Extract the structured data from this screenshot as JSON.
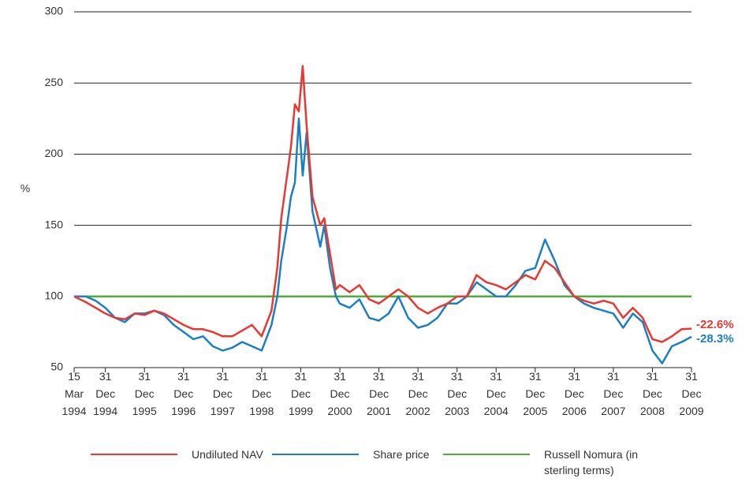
{
  "chart_data": {
    "type": "line",
    "y_label": "%",
    "x": [
      1994.2,
      1994.5,
      1994.75,
      1995,
      1995.25,
      1995.5,
      1995.75,
      1996,
      1996.25,
      1996.5,
      1996.75,
      1997,
      1997.25,
      1997.5,
      1997.75,
      1998,
      1998.25,
      1998.5,
      1998.75,
      1999,
      1999.25,
      1999.4,
      1999.5,
      1999.65,
      1999.75,
      1999.85,
      1999.95,
      2000.05,
      2000.15,
      2000.3,
      2000.5,
      2000.6,
      2000.75,
      2000.9,
      2001,
      2001.25,
      2001.5,
      2001.75,
      2002,
      2002.25,
      2002.5,
      2002.75,
      2003,
      2003.25,
      2003.5,
      2003.75,
      2004,
      2004.25,
      2004.5,
      2004.75,
      2005,
      2005.25,
      2005.5,
      2005.75,
      2006,
      2006.25,
      2006.5,
      2006.75,
      2007,
      2007.25,
      2007.5,
      2007.75,
      2008,
      2008.25,
      2008.5,
      2008.75,
      2009,
      2009.25,
      2009.5,
      2009.75,
      2010
    ],
    "series": [
      {
        "name": "Undiluted NAV",
        "color": "#e8382f",
        "values": [
          100,
          96,
          92,
          88,
          85,
          84,
          88,
          87,
          90,
          88,
          84,
          80,
          77,
          77,
          75,
          72,
          72,
          76,
          80,
          72,
          90,
          120,
          155,
          185,
          205,
          235,
          230,
          262,
          220,
          170,
          150,
          155,
          130,
          105,
          108,
          103,
          108,
          98,
          95,
          100,
          105,
          100,
          92,
          88,
          92,
          95,
          100,
          100,
          115,
          110,
          108,
          105,
          110,
          115,
          112,
          125,
          120,
          110,
          100,
          97,
          95,
          97,
          95,
          85,
          92,
          85,
          70,
          68,
          72,
          77,
          77.4
        ]
      },
      {
        "name": "Share price",
        "color": "#1b7fc1",
        "values": [
          100,
          100,
          97,
          92,
          85,
          82,
          88,
          88,
          90,
          87,
          80,
          75,
          70,
          72,
          65,
          62,
          64,
          68,
          65,
          62,
          80,
          100,
          125,
          150,
          170,
          180,
          225,
          185,
          215,
          160,
          135,
          150,
          120,
          100,
          95,
          92,
          98,
          85,
          83,
          88,
          100,
          85,
          78,
          80,
          85,
          95,
          95,
          100,
          110,
          105,
          100,
          100,
          108,
          118,
          120,
          140,
          125,
          108,
          100,
          95,
          92,
          90,
          88,
          78,
          88,
          82,
          62,
          53,
          65,
          68,
          71.7
        ]
      },
      {
        "name": "Russell Nomura (in sterling terms)",
        "color": "#4caf3a",
        "values": [
          100,
          100,
          100,
          100,
          100,
          100,
          100,
          100,
          100,
          100,
          100,
          100,
          100,
          100,
          100,
          100,
          100,
          100,
          100,
          100,
          100,
          100,
          100,
          100,
          100,
          100,
          100,
          100,
          100,
          100,
          100,
          100,
          100,
          100,
          100,
          100,
          100,
          100,
          100,
          100,
          100,
          100,
          100,
          100,
          100,
          100,
          100,
          100,
          100,
          100,
          100,
          100,
          100,
          100,
          100,
          100,
          100,
          100,
          100,
          100,
          100,
          100,
          100,
          100,
          100,
          100,
          100,
          100,
          100,
          100,
          100
        ]
      }
    ],
    "end_labels": [
      {
        "text": "-22.6%",
        "color": "#e8382f"
      },
      {
        "text": "-28.3%",
        "color": "#1b7fc1"
      }
    ],
    "xlim": [
      1994.2,
      2010
    ],
    "xticks": [
      {
        "value": 1994.2,
        "label": "15 Mar 1994"
      },
      {
        "value": 1995,
        "label": "31 Dec 1994"
      },
      {
        "value": 1996,
        "label": "31 Dec 1995"
      },
      {
        "value": 1997,
        "label": "31 Dec 1996"
      },
      {
        "value": 1998,
        "label": "31 Dec 1997"
      },
      {
        "value": 1999,
        "label": "31 Dec 1998"
      },
      {
        "value": 2000,
        "label": "31 Dec 1999"
      },
      {
        "value": 2001,
        "label": "31 Dec 2000"
      },
      {
        "value": 2002,
        "label": "31 Dec 2001"
      },
      {
        "value": 2003,
        "label": "31 Dec 2002"
      },
      {
        "value": 2004,
        "label": "31 Dec 2003"
      },
      {
        "value": 2005,
        "label": "31 Dec 2004"
      },
      {
        "value": 2006,
        "label": "31 Dec 2005"
      },
      {
        "value": 2007,
        "label": "31 Dec 2006"
      },
      {
        "value": 2008,
        "label": "31 Dec 2007"
      },
      {
        "value": 2009,
        "label": "31 Dec 2008"
      },
      {
        "value": 2010,
        "label": "31 Dec 2009"
      }
    ],
    "ylim": [
      50,
      300
    ],
    "yticks": [
      50,
      100,
      150,
      200,
      250,
      300
    ],
    "grid": true
  }
}
